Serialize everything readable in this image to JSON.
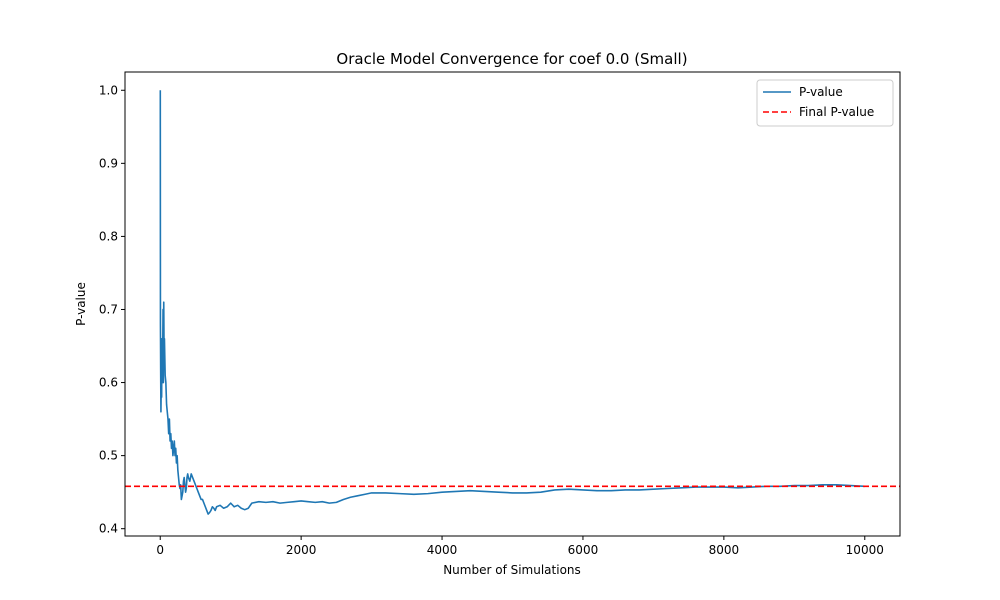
{
  "chart_data": {
    "type": "line",
    "title": "Oracle Model Convergence for coef 0.0 (Small)",
    "xlabel": "Number of Simulations",
    "ylabel": "P-value",
    "xlim": [
      -500,
      10500
    ],
    "ylim": [
      0.39,
      1.025
    ],
    "x_ticks": [
      0,
      2000,
      4000,
      6000,
      8000,
      10000
    ],
    "y_ticks": [
      0.4,
      0.5,
      0.6,
      0.7,
      0.8,
      0.9,
      1.0
    ],
    "x_tick_labels": [
      "0",
      "2000",
      "4000",
      "6000",
      "8000",
      "10000"
    ],
    "y_tick_labels": [
      "0.4",
      "0.5",
      "0.6",
      "0.7",
      "0.8",
      "0.9",
      "1.0"
    ],
    "grid": false,
    "legend_position": "top-right",
    "series": [
      {
        "name": "P-value",
        "color": "#1f77b4",
        "style": "solid",
        "x": [
          1,
          3,
          6,
          10,
          15,
          20,
          25,
          30,
          35,
          40,
          45,
          50,
          55,
          60,
          70,
          80,
          90,
          100,
          110,
          120,
          130,
          140,
          150,
          160,
          170,
          180,
          190,
          200,
          210,
          220,
          230,
          240,
          250,
          260,
          270,
          280,
          290,
          300,
          310,
          320,
          330,
          340,
          350,
          360,
          370,
          380,
          390,
          400,
          420,
          440,
          460,
          480,
          500,
          520,
          540,
          560,
          580,
          600,
          620,
          640,
          660,
          680,
          700,
          720,
          740,
          760,
          780,
          800,
          850,
          900,
          950,
          1000,
          1050,
          1100,
          1150,
          1200,
          1250,
          1300,
          1400,
          1500,
          1600,
          1700,
          1800,
          1900,
          2000,
          2100,
          2200,
          2300,
          2400,
          2500,
          2600,
          2700,
          2800,
          2900,
          3000,
          3200,
          3400,
          3600,
          3800,
          4000,
          4200,
          4400,
          4600,
          4800,
          5000,
          5200,
          5400,
          5600,
          5800,
          6000,
          6200,
          6400,
          6600,
          6800,
          7000,
          7200,
          7400,
          7600,
          7800,
          8000,
          8200,
          8400,
          8600,
          8800,
          9000,
          9200,
          9400,
          9600,
          9800,
          10000
        ],
        "values": [
          1.0,
          0.68,
          0.62,
          0.56,
          0.6,
          0.58,
          0.66,
          0.6,
          0.64,
          0.7,
          0.6,
          0.71,
          0.64,
          0.66,
          0.61,
          0.6,
          0.57,
          0.56,
          0.55,
          0.53,
          0.55,
          0.52,
          0.53,
          0.51,
          0.52,
          0.5,
          0.51,
          0.52,
          0.5,
          0.51,
          0.49,
          0.5,
          0.48,
          0.47,
          0.46,
          0.455,
          0.46,
          0.44,
          0.445,
          0.45,
          0.465,
          0.47,
          0.46,
          0.45,
          0.455,
          0.47,
          0.475,
          0.47,
          0.465,
          0.475,
          0.47,
          0.465,
          0.46,
          0.455,
          0.45,
          0.445,
          0.44,
          0.44,
          0.435,
          0.43,
          0.425,
          0.42,
          0.422,
          0.425,
          0.43,
          0.428,
          0.425,
          0.43,
          0.432,
          0.428,
          0.43,
          0.435,
          0.43,
          0.432,
          0.428,
          0.426,
          0.428,
          0.435,
          0.437,
          0.436,
          0.437,
          0.435,
          0.436,
          0.437,
          0.438,
          0.437,
          0.436,
          0.437,
          0.435,
          0.436,
          0.44,
          0.443,
          0.445,
          0.447,
          0.449,
          0.449,
          0.448,
          0.447,
          0.448,
          0.45,
          0.451,
          0.452,
          0.451,
          0.45,
          0.449,
          0.449,
          0.45,
          0.453,
          0.454,
          0.453,
          0.452,
          0.452,
          0.453,
          0.453,
          0.454,
          0.455,
          0.456,
          0.457,
          0.457,
          0.457,
          0.456,
          0.457,
          0.458,
          0.458,
          0.459,
          0.459,
          0.46,
          0.46,
          0.459,
          0.458
        ]
      },
      {
        "name": "Final P-value",
        "color": "#ff0000",
        "style": "dashed",
        "hline": 0.458
      }
    ]
  }
}
